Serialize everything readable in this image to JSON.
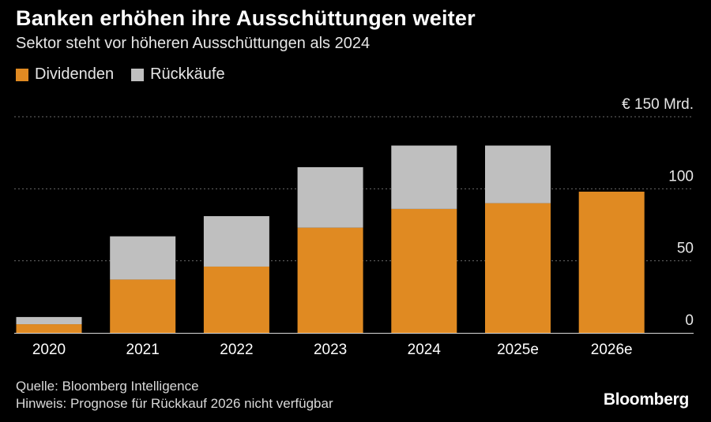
{
  "title": "Banken erhöhen ihre Ausschüttungen weiter",
  "subtitle": "Sektor steht vor höheren Ausschüttungen als 2024",
  "legend": {
    "dividends": "Dividenden",
    "buybacks": "Rückkäufe"
  },
  "colors": {
    "dividends": "#e08a22",
    "buybacks": "#bfbfbf",
    "background": "#000000",
    "grid": "#6a6a6a"
  },
  "footer": {
    "source": "Quelle: Bloomberg Intelligence",
    "note": "Hinweis: Prognose für Rückkauf 2026 nicht verfügbar"
  },
  "brand": "Bloomberg",
  "chart_data": {
    "type": "bar",
    "stacked": true,
    "categories": [
      "2020",
      "2021",
      "2022",
      "2023",
      "2024",
      "2025e",
      "2026e"
    ],
    "series": [
      {
        "name": "Dividenden",
        "values": [
          6,
          37,
          46,
          73,
          86,
          90,
          98
        ]
      },
      {
        "name": "Rückkäufe",
        "values": [
          5,
          30,
          35,
          42,
          44,
          40,
          null
        ]
      }
    ],
    "y_ticks": [
      0,
      50,
      100,
      150
    ],
    "y_tick_labels": [
      "0",
      "50",
      "100",
      "€ 150 Mrd."
    ],
    "ylim": [
      0,
      150
    ],
    "grid": true,
    "legend_position": "top-left"
  }
}
